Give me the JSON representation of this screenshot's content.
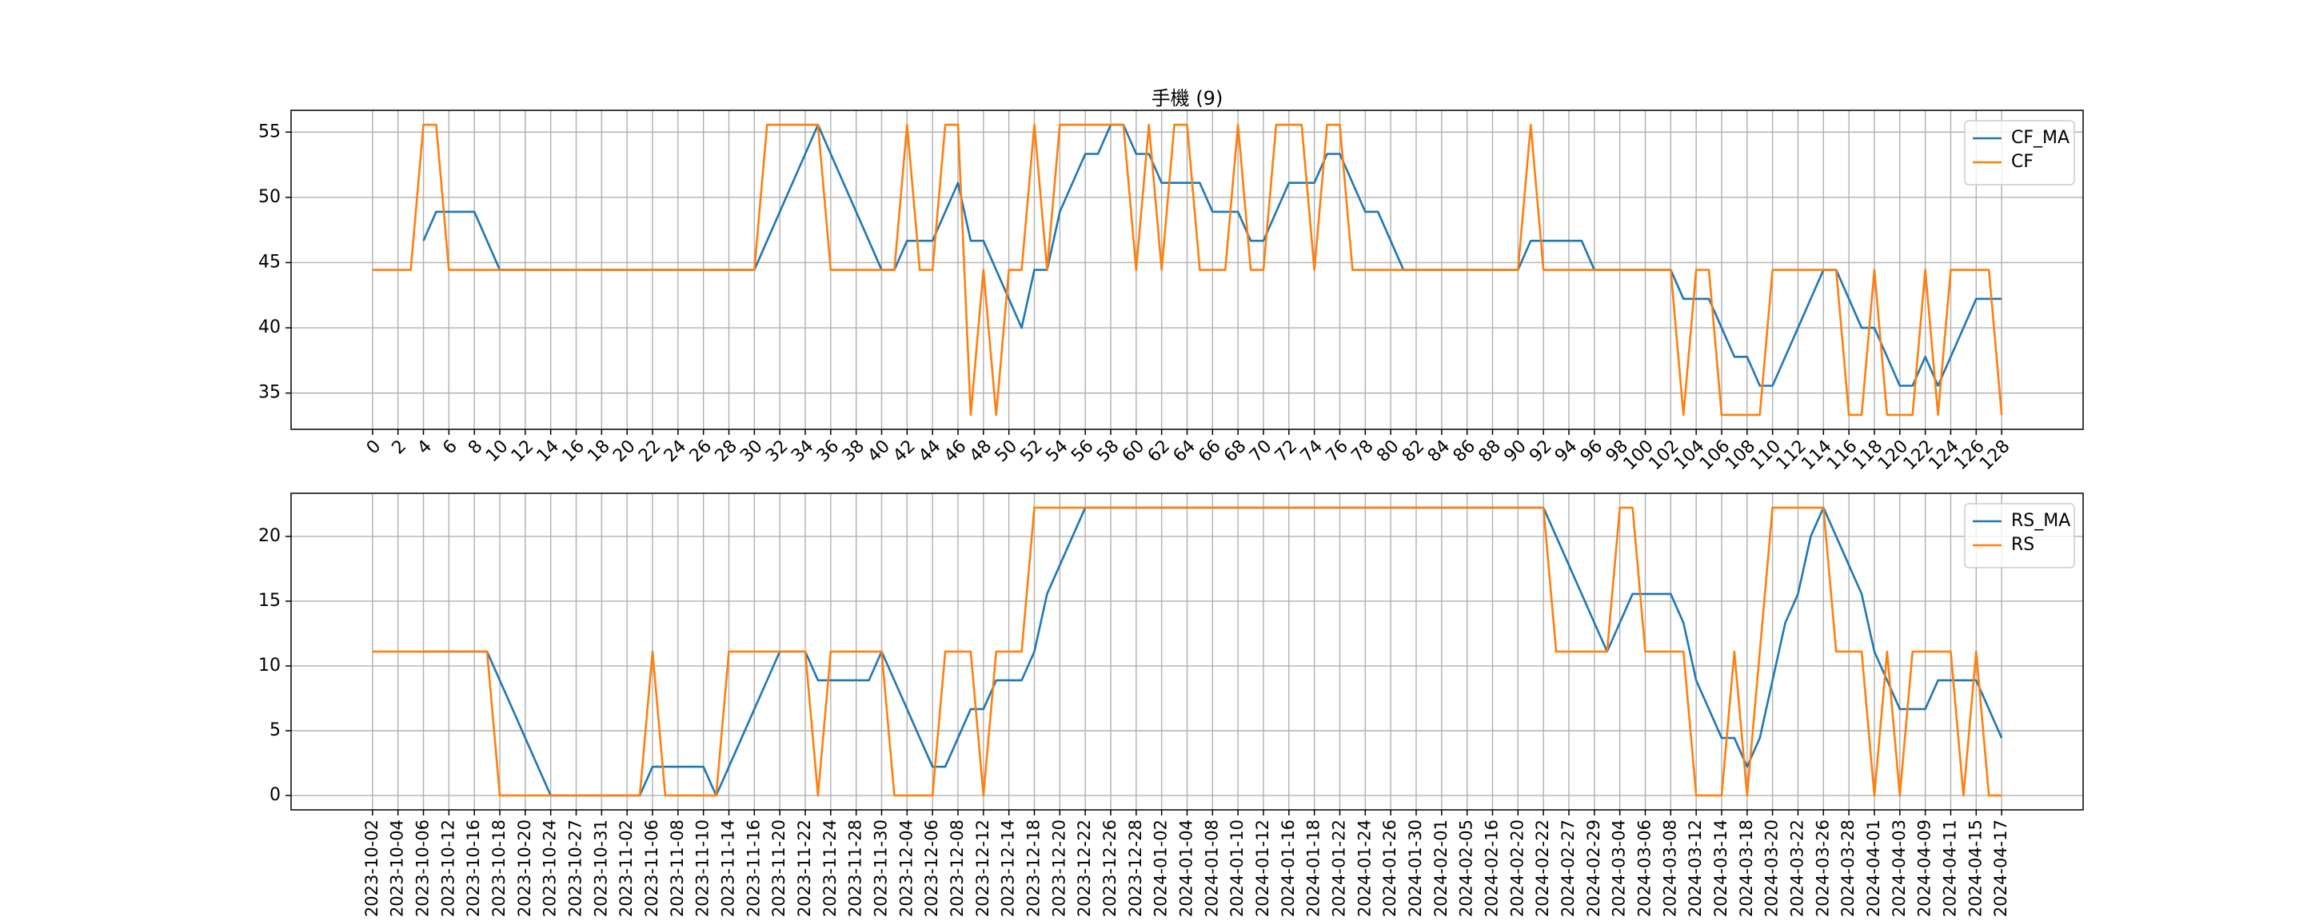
{
  "chart_data": [
    {
      "type": "line",
      "title": "手機 (9)",
      "grid": true,
      "legend": "upper right",
      "x": [
        0,
        1,
        2,
        3,
        4,
        5,
        6,
        7,
        8,
        9,
        10,
        11,
        12,
        13,
        14,
        15,
        16,
        17,
        18,
        19,
        20,
        21,
        22,
        23,
        24,
        25,
        26,
        27,
        28,
        29,
        30,
        31,
        32,
        33,
        34,
        35,
        36,
        37,
        38,
        39,
        40,
        41,
        42,
        43,
        44,
        45,
        46,
        47,
        48,
        49,
        50,
        51,
        52,
        53,
        54,
        55,
        56,
        57,
        58,
        59,
        60,
        61,
        62,
        63,
        64,
        65,
        66,
        67,
        68,
        69,
        70,
        71,
        72,
        73,
        74,
        75,
        76,
        77,
        78,
        79,
        80,
        81,
        82,
        83,
        84,
        85,
        86,
        87,
        88,
        89,
        90,
        91,
        92,
        93,
        94,
        95,
        96,
        97,
        98,
        99,
        100,
        101,
        102,
        103,
        104,
        105,
        106,
        107,
        108,
        109,
        110,
        111,
        112,
        113,
        114,
        115,
        116,
        117,
        118,
        119,
        120,
        121,
        122,
        123,
        124,
        125,
        126,
        127,
        128
      ],
      "xlim": [
        -6.4,
        134.4
      ],
      "xticks": [
        0,
        2,
        4,
        6,
        8,
        10,
        12,
        14,
        16,
        18,
        20,
        22,
        24,
        26,
        28,
        30,
        32,
        34,
        36,
        38,
        40,
        42,
        44,
        46,
        48,
        50,
        52,
        54,
        56,
        58,
        60,
        62,
        64,
        66,
        68,
        70,
        72,
        74,
        76,
        78,
        80,
        82,
        84,
        86,
        88,
        90,
        92,
        94,
        96,
        98,
        100,
        102,
        104,
        106,
        108,
        110,
        112,
        114,
        116,
        118,
        120,
        122,
        124,
        126,
        128
      ],
      "ylim": [
        32.22,
        56.67
      ],
      "yticks": [
        35,
        40,
        45,
        50,
        55
      ],
      "series": [
        {
          "name": "CF_MA",
          "color": "#1f77b4",
          "values": [
            null,
            null,
            null,
            null,
            46.67,
            48.89,
            48.89,
            48.89,
            48.89,
            46.67,
            44.44,
            44.44,
            44.44,
            44.44,
            44.44,
            44.44,
            44.44,
            44.44,
            44.44,
            44.44,
            44.44,
            44.44,
            44.44,
            44.44,
            44.44,
            44.44,
            44.44,
            44.44,
            44.44,
            44.44,
            44.44,
            46.67,
            48.89,
            51.11,
            53.33,
            55.56,
            53.33,
            51.11,
            48.89,
            46.67,
            44.44,
            44.44,
            46.67,
            46.67,
            46.67,
            48.89,
            51.11,
            46.67,
            46.67,
            44.44,
            42.22,
            40,
            44.44,
            44.44,
            48.89,
            51.11,
            53.33,
            53.33,
            55.56,
            55.56,
            53.33,
            53.33,
            51.11,
            51.11,
            51.11,
            51.11,
            48.89,
            48.89,
            48.89,
            46.67,
            46.67,
            48.89,
            51.11,
            51.11,
            51.11,
            53.33,
            53.33,
            51.11,
            48.89,
            48.89,
            46.67,
            44.44,
            44.44,
            44.44,
            44.44,
            44.44,
            44.44,
            44.44,
            44.44,
            44.44,
            44.44,
            46.67,
            46.67,
            46.67,
            46.67,
            46.67,
            44.44,
            44.44,
            44.44,
            44.44,
            44.44,
            44.44,
            44.44,
            42.22,
            42.22,
            42.22,
            40,
            37.78,
            37.78,
            35.56,
            35.56,
            37.78,
            40,
            42.22,
            44.44,
            44.44,
            42.22,
            40,
            40,
            37.78,
            35.56,
            35.56,
            37.78,
            35.56,
            37.78,
            40,
            42.22,
            42.22,
            42.22
          ]
        },
        {
          "name": "CF",
          "color": "#ff7f0e",
          "values": [
            44.44,
            44.44,
            44.44,
            44.44,
            55.56,
            55.56,
            44.44,
            44.44,
            44.44,
            44.44,
            44.44,
            44.44,
            44.44,
            44.44,
            44.44,
            44.44,
            44.44,
            44.44,
            44.44,
            44.44,
            44.44,
            44.44,
            44.44,
            44.44,
            44.44,
            44.44,
            44.44,
            44.44,
            44.44,
            44.44,
            44.44,
            55.56,
            55.56,
            55.56,
            55.56,
            55.56,
            44.44,
            44.44,
            44.44,
            44.44,
            44.44,
            44.44,
            55.56,
            44.44,
            44.44,
            55.56,
            55.56,
            33.33,
            44.44,
            33.33,
            44.44,
            44.44,
            55.56,
            44.44,
            55.56,
            55.56,
            55.56,
            55.56,
            55.56,
            55.56,
            44.44,
            55.56,
            44.44,
            55.56,
            55.56,
            44.44,
            44.44,
            44.44,
            55.56,
            44.44,
            44.44,
            55.56,
            55.56,
            55.56,
            44.44,
            55.56,
            55.56,
            44.44,
            44.44,
            44.44,
            44.44,
            44.44,
            44.44,
            44.44,
            44.44,
            44.44,
            44.44,
            44.44,
            44.44,
            44.44,
            44.44,
            55.56,
            44.44,
            44.44,
            44.44,
            44.44,
            44.44,
            44.44,
            44.44,
            44.44,
            44.44,
            44.44,
            44.44,
            33.33,
            44.44,
            44.44,
            33.33,
            33.33,
            33.33,
            33.33,
            44.44,
            44.44,
            44.44,
            44.44,
            44.44,
            44.44,
            33.33,
            33.33,
            44.44,
            33.33,
            33.33,
            33.33,
            44.44,
            33.33,
            44.44,
            44.44,
            44.44,
            44.44,
            33.33
          ]
        }
      ]
    },
    {
      "type": "line",
      "grid": true,
      "legend": "upper right",
      "categories": [
        "2023-10-02",
        null,
        "2023-10-04",
        null,
        "2023-10-06",
        null,
        "2023-10-12",
        null,
        "2023-10-16",
        null,
        "2023-10-18",
        null,
        "2023-10-20",
        null,
        "2023-10-24",
        null,
        "2023-10-27",
        null,
        "2023-10-31",
        null,
        "2023-11-02",
        null,
        "2023-11-06",
        null,
        "2023-11-08",
        null,
        "2023-11-10",
        null,
        "2023-11-14",
        null,
        "2023-11-16",
        null,
        "2023-11-20",
        null,
        "2023-11-22",
        null,
        "2023-11-24",
        null,
        "2023-11-28",
        null,
        "2023-11-30",
        null,
        "2023-12-04",
        null,
        "2023-12-06",
        null,
        "2023-12-08",
        null,
        "2023-12-12",
        null,
        "2023-12-14",
        null,
        "2023-12-18",
        null,
        "2023-12-20",
        null,
        "2023-12-22",
        null,
        "2023-12-26",
        null,
        "2023-12-28",
        null,
        "2024-01-02",
        null,
        "2024-01-04",
        null,
        "2024-01-08",
        null,
        "2024-01-10",
        null,
        "2024-01-12",
        null,
        "2024-01-16",
        null,
        "2024-01-18",
        null,
        "2024-01-22",
        null,
        "2024-01-24",
        null,
        "2024-01-26",
        null,
        "2024-01-30",
        null,
        "2024-02-01",
        null,
        "2024-02-05",
        null,
        "2024-02-16",
        null,
        "2024-02-20",
        null,
        "2024-02-22",
        null,
        "2024-02-27",
        null,
        "2024-02-29",
        null,
        "2024-03-04",
        null,
        "2024-03-06",
        null,
        "2024-03-08",
        null,
        "2024-03-12",
        null,
        "2024-03-14",
        null,
        "2024-03-18",
        null,
        "2024-03-20",
        null,
        "2024-03-22",
        null,
        "2024-03-26",
        null,
        "2024-03-28",
        null,
        "2024-04-01",
        null,
        "2024-04-03",
        null,
        "2024-04-09",
        null,
        "2024-04-11",
        null,
        "2024-04-15",
        null,
        "2024-04-17"
      ],
      "ylim": [
        -1.11,
        23.33
      ],
      "yticks": [
        0,
        5,
        10,
        15,
        20
      ],
      "series": [
        {
          "name": "RS_MA",
          "color": "#1f77b4",
          "values": [
            null,
            null,
            null,
            null,
            11.11,
            11.11,
            11.11,
            11.11,
            11.11,
            11.11,
            8.89,
            6.67,
            4.44,
            2.22,
            0,
            0,
            0,
            0,
            0,
            0,
            0,
            0,
            2.22,
            2.22,
            2.22,
            2.22,
            2.22,
            0,
            2.22,
            4.44,
            6.67,
            8.89,
            11.11,
            11.11,
            11.11,
            8.89,
            8.89,
            8.89,
            8.89,
            8.89,
            11.11,
            8.89,
            6.67,
            4.44,
            2.22,
            2.22,
            4.44,
            6.67,
            6.67,
            8.89,
            8.89,
            8.89,
            11.11,
            15.56,
            17.78,
            20,
            22.22,
            22.22,
            22.22,
            22.22,
            22.22,
            22.22,
            22.22,
            22.22,
            22.22,
            22.22,
            22.22,
            22.22,
            22.22,
            22.22,
            22.22,
            22.22,
            22.22,
            22.22,
            22.22,
            22.22,
            22.22,
            22.22,
            22.22,
            22.22,
            22.22,
            22.22,
            22.22,
            22.22,
            22.22,
            22.22,
            22.22,
            22.22,
            22.22,
            22.22,
            22.22,
            22.22,
            22.22,
            20,
            17.78,
            15.56,
            13.33,
            11.11,
            13.33,
            15.56,
            15.56,
            15.56,
            15.56,
            13.33,
            8.89,
            6.67,
            4.44,
            4.44,
            2.22,
            4.44,
            8.89,
            13.33,
            15.56,
            20,
            22.22,
            20,
            17.78,
            15.56,
            11.11,
            8.89,
            6.67,
            6.67,
            6.67,
            8.89,
            8.89,
            8.89,
            8.89,
            6.67,
            4.44
          ]
        },
        {
          "name": "RS",
          "color": "#ff7f0e",
          "values": [
            11.11,
            11.11,
            11.11,
            11.11,
            11.11,
            11.11,
            11.11,
            11.11,
            11.11,
            11.11,
            0,
            0,
            0,
            0,
            0,
            0,
            0,
            0,
            0,
            0,
            0,
            0,
            11.11,
            0,
            0,
            0,
            0,
            0,
            11.11,
            11.11,
            11.11,
            11.11,
            11.11,
            11.11,
            11.11,
            0,
            11.11,
            11.11,
            11.11,
            11.11,
            11.11,
            0,
            0,
            0,
            0,
            11.11,
            11.11,
            11.11,
            0,
            11.11,
            11.11,
            11.11,
            22.22,
            22.22,
            22.22,
            22.22,
            22.22,
            22.22,
            22.22,
            22.22,
            22.22,
            22.22,
            22.22,
            22.22,
            22.22,
            22.22,
            22.22,
            22.22,
            22.22,
            22.22,
            22.22,
            22.22,
            22.22,
            22.22,
            22.22,
            22.22,
            22.22,
            22.22,
            22.22,
            22.22,
            22.22,
            22.22,
            22.22,
            22.22,
            22.22,
            22.22,
            22.22,
            22.22,
            22.22,
            22.22,
            22.22,
            22.22,
            22.22,
            11.11,
            11.11,
            11.11,
            11.11,
            11.11,
            22.22,
            22.22,
            11.11,
            11.11,
            11.11,
            11.11,
            0,
            0,
            0,
            11.11,
            0,
            11.11,
            22.22,
            22.22,
            22.22,
            22.22,
            22.22,
            11.11,
            11.11,
            11.11,
            0,
            11.11,
            0,
            11.11,
            11.11,
            11.11,
            11.11,
            0,
            11.11,
            0,
            0
          ]
        }
      ]
    }
  ]
}
